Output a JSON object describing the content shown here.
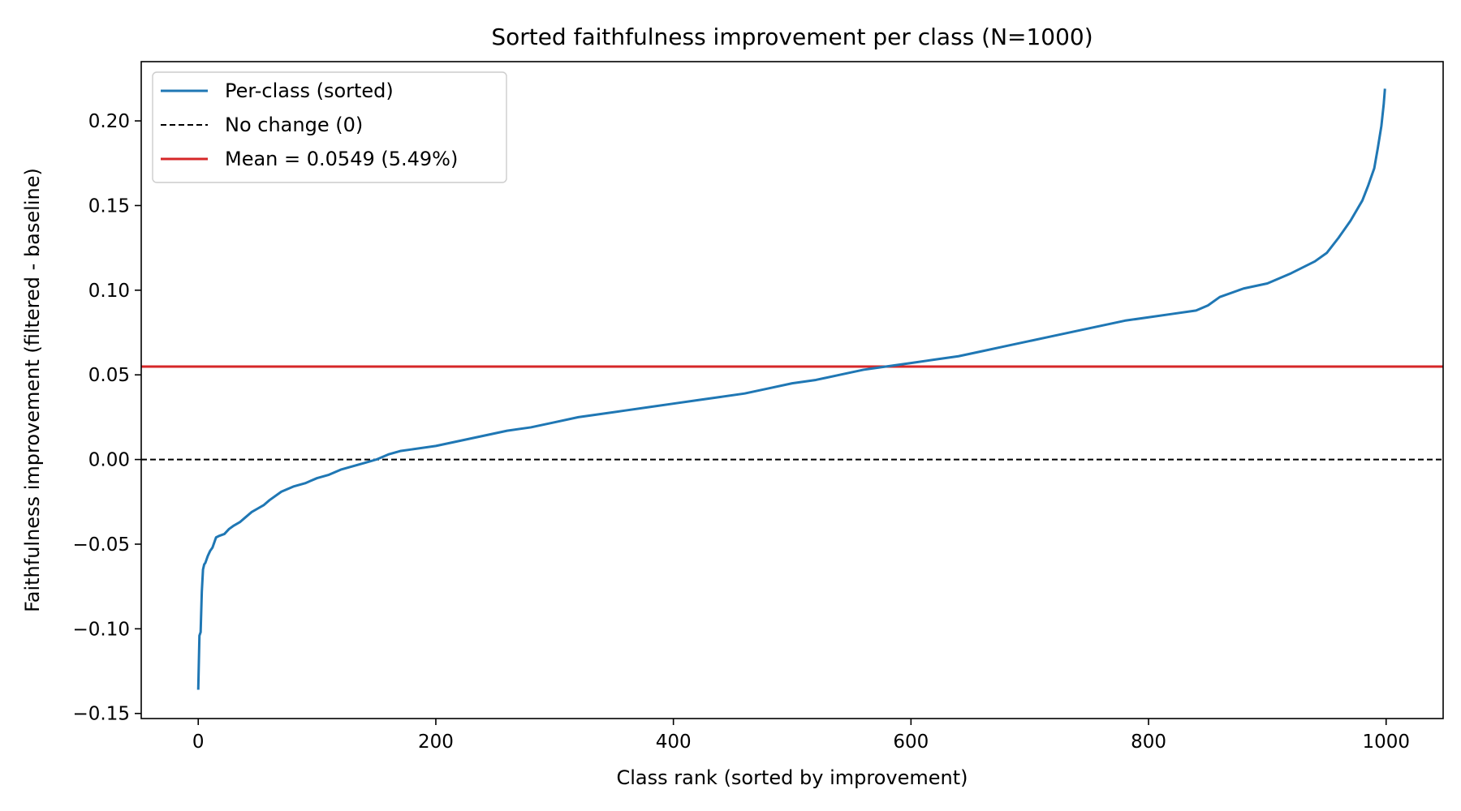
{
  "chart_data": {
    "type": "line",
    "title": "Sorted faithfulness improvement per class (N=1000)",
    "xlabel": "Class rank (sorted by improvement)",
    "ylabel": "Faithfulness improvement (filtered - baseline)",
    "xlim": [
      -48,
      1048
    ],
    "ylim": [
      -0.153,
      0.235
    ],
    "x_ticks": [
      0,
      200,
      400,
      600,
      800,
      1000
    ],
    "x_tick_labels": [
      "0",
      "200",
      "400",
      "600",
      "800",
      "1000"
    ],
    "y_ticks": [
      -0.15,
      -0.1,
      -0.05,
      0.0,
      0.05,
      0.1,
      0.15,
      0.2
    ],
    "y_tick_labels": [
      "−0.15",
      "−0.10",
      "−0.05",
      "0.00",
      "0.05",
      "0.10",
      "0.15",
      "0.20"
    ],
    "grid": false,
    "legend_position": "top-left",
    "series": [
      {
        "name": "Per-class (sorted)",
        "color": "#1f77b4",
        "style": "solid",
        "x": [
          0,
          1,
          2,
          3,
          4,
          5,
          6,
          8,
          10,
          12,
          15,
          18,
          22,
          26,
          30,
          35,
          40,
          45,
          50,
          55,
          60,
          70,
          80,
          90,
          100,
          110,
          120,
          130,
          140,
          150,
          160,
          170,
          180,
          200,
          220,
          240,
          260,
          280,
          300,
          320,
          340,
          360,
          380,
          400,
          420,
          440,
          460,
          480,
          500,
          520,
          540,
          560,
          580,
          600,
          620,
          640,
          660,
          680,
          700,
          720,
          740,
          760,
          780,
          800,
          820,
          840,
          850,
          860,
          880,
          900,
          920,
          940,
          950,
          960,
          970,
          980,
          985,
          990,
          993,
          996,
          998,
          999
        ],
        "y": [
          -0.136,
          -0.104,
          -0.102,
          -0.078,
          -0.065,
          -0.062,
          -0.061,
          -0.057,
          -0.054,
          -0.052,
          -0.046,
          -0.045,
          -0.044,
          -0.041,
          -0.039,
          -0.037,
          -0.034,
          -0.031,
          -0.029,
          -0.027,
          -0.024,
          -0.019,
          -0.016,
          -0.014,
          -0.011,
          -0.009,
          -0.006,
          -0.004,
          -0.002,
          0.0,
          0.003,
          0.005,
          0.006,
          0.008,
          0.011,
          0.014,
          0.017,
          0.019,
          0.022,
          0.025,
          0.027,
          0.029,
          0.031,
          0.033,
          0.035,
          0.037,
          0.039,
          0.042,
          0.045,
          0.047,
          0.05,
          0.053,
          0.055,
          0.057,
          0.059,
          0.061,
          0.064,
          0.067,
          0.07,
          0.073,
          0.076,
          0.079,
          0.082,
          0.084,
          0.086,
          0.088,
          0.091,
          0.096,
          0.101,
          0.104,
          0.11,
          0.117,
          0.122,
          0.131,
          0.141,
          0.153,
          0.162,
          0.172,
          0.184,
          0.197,
          0.21,
          0.219
        ]
      },
      {
        "name": "No change (0)",
        "color": "#000000",
        "style": "dashed",
        "y": 0.0
      },
      {
        "name": "Mean = 0.0549 (5.49%)",
        "color": "#d62728",
        "style": "solid",
        "y": 0.0549
      }
    ]
  }
}
